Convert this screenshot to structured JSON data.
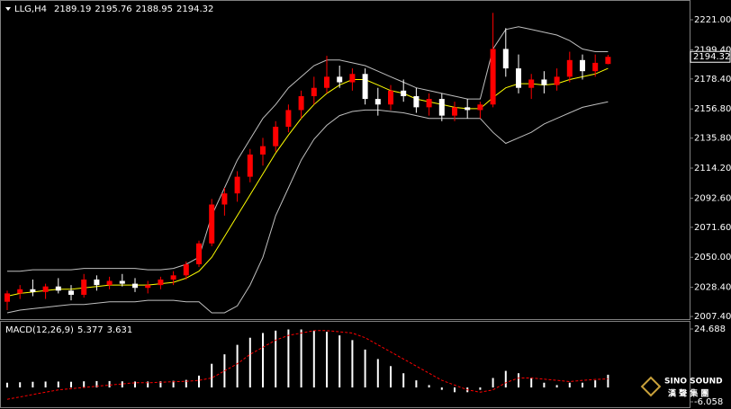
{
  "chart_data": [
    {
      "type": "candlestick",
      "title": "LLG,H4",
      "ohlc": [
        [
          2018,
          2026,
          2012,
          2024
        ],
        [
          2024,
          2030,
          2020,
          2027
        ],
        [
          2027,
          2034,
          2022,
          2025
        ],
        [
          2025,
          2031,
          2020,
          2029
        ],
        [
          2029,
          2035,
          2024,
          2026
        ],
        [
          2026,
          2030,
          2019,
          2023
        ],
        [
          2023,
          2038,
          2021,
          2034
        ],
        [
          2034,
          2037,
          2026,
          2030
        ],
        [
          2030,
          2036,
          2027,
          2033
        ],
        [
          2033,
          2038,
          2029,
          2031
        ],
        [
          2031,
          2035,
          2025,
          2028
        ],
        [
          2028,
          2033,
          2024,
          2030
        ],
        [
          2030,
          2036,
          2027,
          2034
        ],
        [
          2034,
          2040,
          2030,
          2037
        ],
        [
          2037,
          2047,
          2034,
          2045
        ],
        [
          2045,
          2062,
          2043,
          2060
        ],
        [
          2060,
          2092,
          2058,
          2088
        ],
        [
          2088,
          2100,
          2080,
          2096
        ],
        [
          2096,
          2112,
          2090,
          2108
        ],
        [
          2108,
          2128,
          2104,
          2124
        ],
        [
          2124,
          2136,
          2116,
          2130
        ],
        [
          2130,
          2148,
          2126,
          2144
        ],
        [
          2144,
          2160,
          2140,
          2156
        ],
        [
          2156,
          2170,
          2150,
          2166
        ],
        [
          2166,
          2180,
          2160,
          2172
        ],
        [
          2172,
          2195,
          2168,
          2180
        ],
        [
          2180,
          2188,
          2172,
          2176
        ],
        [
          2176,
          2186,
          2170,
          2182
        ],
        [
          2182,
          2186,
          2160,
          2164
        ],
        [
          2164,
          2172,
          2152,
          2160
        ],
        [
          2160,
          2174,
          2156,
          2170
        ],
        [
          2170,
          2178,
          2162,
          2166
        ],
        [
          2166,
          2172,
          2154,
          2158
        ],
        [
          2158,
          2168,
          2152,
          2164
        ],
        [
          2164,
          2168,
          2148,
          2152
        ],
        [
          2152,
          2162,
          2148,
          2158
        ],
        [
          2158,
          2164,
          2150,
          2156
        ],
        [
          2156,
          2162,
          2150,
          2160
        ],
        [
          2160,
          2226,
          2158,
          2200
        ],
        [
          2200,
          2215,
          2180,
          2186
        ],
        [
          2186,
          2196,
          2168,
          2172
        ],
        [
          2172,
          2182,
          2164,
          2178
        ],
        [
          2178,
          2184,
          2168,
          2174
        ],
        [
          2174,
          2186,
          2170,
          2180
        ],
        [
          2180,
          2198,
          2176,
          2192
        ],
        [
          2192,
          2196,
          2178,
          2184
        ],
        [
          2184,
          2196,
          2180,
          2190
        ],
        [
          2189.19,
          2195.76,
          2188.95,
          2194.32
        ]
      ],
      "up_color": "#ff0000",
      "down_color": "#ffffff",
      "overlays": [
        {
          "color": "#bfbfbf",
          "values": [
            2040,
            2040,
            2041,
            2041,
            2041,
            2041,
            2042,
            2042,
            2042,
            2042,
            2042,
            2041,
            2041,
            2042,
            2045,
            2050,
            2080,
            2100,
            2120,
            2135,
            2150,
            2160,
            2172,
            2180,
            2188,
            2192,
            2192,
            2190,
            2188,
            2184,
            2180,
            2176,
            2172,
            2170,
            2168,
            2166,
            2164,
            2164,
            2200,
            2214,
            2216,
            2214,
            2212,
            2210,
            2206,
            2200,
            2198,
            2198
          ]
        },
        {
          "color": "#bfbfbf",
          "values": [
            2010,
            2012,
            2013,
            2014,
            2015,
            2016,
            2016,
            2017,
            2018,
            2018,
            2018,
            2019,
            2019,
            2019,
            2018,
            2018,
            2010,
            2010,
            2015,
            2030,
            2050,
            2080,
            2100,
            2120,
            2135,
            2145,
            2152,
            2155,
            2156,
            2156,
            2155,
            2154,
            2152,
            2150,
            2150,
            2150,
            2150,
            2150,
            2140,
            2132,
            2136,
            2140,
            2146,
            2150,
            2154,
            2158,
            2160,
            2162
          ]
        },
        {
          "color": "#ffff00",
          "values": [
            2022,
            2024,
            2025,
            2026,
            2027,
            2027,
            2028,
            2029,
            2030,
            2030,
            2030,
            2030,
            2031,
            2032,
            2035,
            2040,
            2050,
            2065,
            2080,
            2095,
            2110,
            2125,
            2138,
            2150,
            2160,
            2168,
            2174,
            2178,
            2178,
            2174,
            2170,
            2168,
            2164,
            2162,
            2160,
            2158,
            2157,
            2157,
            2165,
            2172,
            2175,
            2175,
            2174,
            2175,
            2178,
            2180,
            2182,
            2186
          ]
        }
      ],
      "ylim": [
        2005.5,
        2233.3
      ],
      "yticks": [
        {
          "value": 2007.4,
          "label": "2007.40"
        },
        {
          "value": 2028.4,
          "label": "2028.40"
        },
        {
          "value": 2050,
          "label": "2050.00"
        },
        {
          "value": 2071.6,
          "label": "2071.60"
        },
        {
          "value": 2092.6,
          "label": "2092.60"
        },
        {
          "value": 2114.2,
          "label": "2114.20"
        },
        {
          "value": 2135.8,
          "label": "2135.80"
        },
        {
          "value": 2156.8,
          "label": "2156.80"
        },
        {
          "value": 2178.4,
          "label": "2178.40"
        },
        {
          "value": 2199.4,
          "label": "2199.40"
        },
        {
          "value": 2221,
          "label": "2221.00"
        }
      ],
      "grid": false
    },
    {
      "type": "macd",
      "title": "MACD(12,26,9)",
      "series": [
        {
          "color": "#ffffff",
          "values": [
            2,
            2.2,
            2.4,
            2.5,
            2.5,
            2.4,
            2.6,
            2.7,
            2.7,
            2.6,
            2.5,
            2.5,
            2.6,
            2.8,
            3.2,
            5,
            10,
            14,
            18,
            21,
            23,
            24,
            24.5,
            24.5,
            24,
            23.5,
            22,
            20,
            16,
            12,
            9,
            6,
            3,
            1,
            -1,
            -2,
            -2,
            -1,
            4,
            7,
            6,
            4,
            2,
            1,
            2,
            2,
            3,
            5.377
          ]
        },
        {
          "color": "#ff0000",
          "values": [
            -5,
            -4,
            -3,
            -2,
            -1,
            -0.5,
            0,
            0.5,
            1,
            1.5,
            2,
            2,
            2.2,
            2.4,
            2.6,
            3,
            4,
            7,
            10,
            14,
            17,
            20,
            22,
            23,
            24,
            24,
            23.5,
            23,
            21,
            18,
            15,
            12,
            9,
            6,
            3,
            1,
            -1,
            -2,
            -1,
            2,
            4,
            4,
            3.5,
            3,
            2.5,
            3,
            3.4,
            3.631
          ]
        }
      ],
      "ylim": [
        -7.96,
        27.73
      ],
      "yticks": [
        -6.058,
        24.688
      ]
    }
  ],
  "logo": {
    "line1": "SINO SOUND",
    "line2": "漢 聲 集 團"
  }
}
